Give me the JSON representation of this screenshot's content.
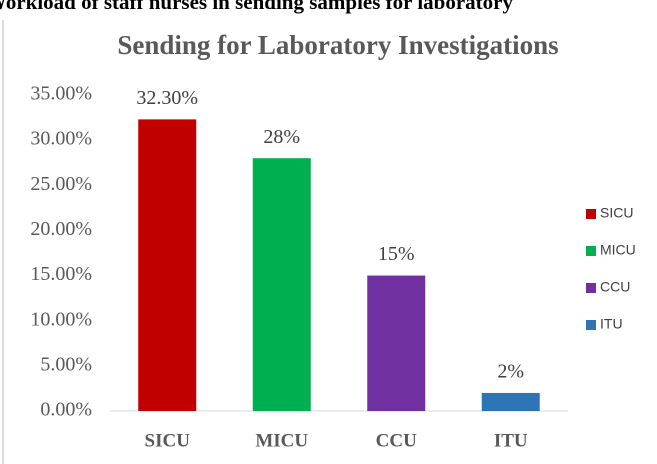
{
  "chart_data": {
    "type": "bar",
    "heading": "Workload of staff nurses in sending samples for laboratory",
    "title": "Sending for Laboratory Investigations",
    "categories": [
      "SICU",
      "MICU",
      "CCU",
      "ITU"
    ],
    "values": [
      32.3,
      28,
      15,
      2
    ],
    "value_labels": [
      "32.30%",
      "28%",
      "15%",
      "2%"
    ],
    "colors": [
      "#c00000",
      "#00b050",
      "#7030a0",
      "#2e75b6"
    ],
    "ylim": [
      0,
      35
    ],
    "yticks": [
      {
        "value": 0,
        "label": "0.00%"
      },
      {
        "value": 5,
        "label": "5.00%"
      },
      {
        "value": 10,
        "label": "10.00%"
      },
      {
        "value": 15,
        "label": "15.00%"
      },
      {
        "value": 20,
        "label": "20.00%"
      },
      {
        "value": 25,
        "label": "25.00%"
      },
      {
        "value": 30,
        "label": "30.00%"
      },
      {
        "value": 35,
        "label": "35.00%"
      }
    ],
    "grid": false,
    "legend": "right"
  }
}
